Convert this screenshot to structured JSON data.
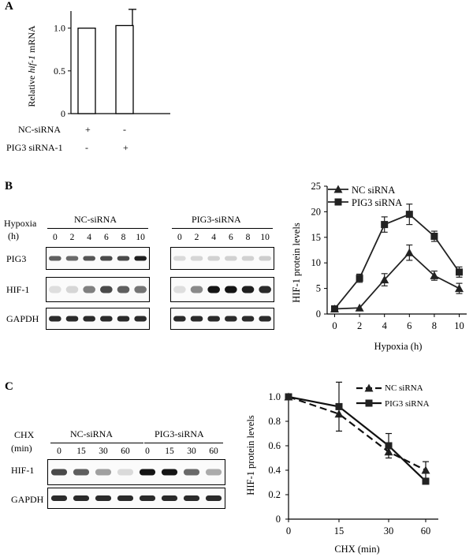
{
  "panels": {
    "a": {
      "letter": "A",
      "bar_chart": {
        "type": "bar",
        "ylabel_prefix": "Relative ",
        "ylabel_italic": "hif-1",
        "ylabel_suffix": " mRNA",
        "ylim": [
          0,
          1.2
        ],
        "yticks": [
          "0",
          "0.5",
          "1.0"
        ],
        "ytick_values": [
          0,
          0.5,
          1.0
        ],
        "values": [
          1.0,
          1.03
        ],
        "errors": [
          0,
          0.19
        ]
      },
      "condition_rows": [
        {
          "label": "NC-siRNA",
          "marks": [
            "+",
            "-"
          ]
        },
        {
          "label": "PIG3 siRNA-1",
          "marks": [
            "-",
            "+"
          ]
        }
      ]
    },
    "b": {
      "letter": "B",
      "blot": {
        "treatment_label": "Hypoxia",
        "unit_label": "(h)",
        "group_labels": [
          "NC-siRNA",
          "PIG3-siRNA"
        ],
        "lanes": [
          "0",
          "2",
          "4",
          "6",
          "8",
          "10"
        ],
        "rows": [
          {
            "name": "PIG3",
            "intensity_nc": [
              0.65,
              0.6,
              0.7,
              0.75,
              0.75,
              0.95
            ],
            "intensity_pig3": [
              0.08,
              0.1,
              0.12,
              0.12,
              0.12,
              0.14
            ]
          },
          {
            "name": "HIF-1",
            "intensity_nc": [
              0.06,
              0.1,
              0.5,
              0.75,
              0.65,
              0.55
            ],
            "intensity_pig3": [
              0.06,
              0.45,
              1.0,
              1.0,
              0.95,
              0.9
            ]
          },
          {
            "name": "GAPDH",
            "intensity_nc": [
              0.9,
              0.9,
              0.9,
              0.9,
              0.9,
              0.9
            ],
            "intensity_pig3": [
              0.9,
              0.9,
              0.9,
              0.9,
              0.9,
              0.9
            ]
          }
        ]
      }
    },
    "c": {
      "letter": "C",
      "blot": {
        "treatment_label": "CHX",
        "unit_label": "(min)",
        "group_labels": [
          "NC-siRNA",
          "PIG3-siRNA"
        ],
        "lanes": [
          "0",
          "15",
          "30",
          "60"
        ],
        "rows": [
          {
            "name": "HIF-1",
            "intensity_nc": [
              0.75,
              0.65,
              0.35,
              0.08
            ],
            "intensity_pig3": [
              1.0,
              1.0,
              0.6,
              0.3
            ]
          },
          {
            "name": "GAPDH",
            "intensity_nc": [
              0.9,
              0.9,
              0.9,
              0.9
            ],
            "intensity_pig3": [
              0.9,
              0.9,
              0.9,
              0.9
            ]
          }
        ]
      }
    }
  },
  "chart_data": [
    {
      "type": "bar",
      "categories": [
        "NC-siRNA +",
        "PIG3 siRNA-1 +"
      ],
      "values": [
        1.0,
        1.03
      ],
      "errors": [
        0,
        0.19
      ],
      "ylabel": "Relative hif-1 mRNA",
      "ylim": [
        0,
        1.2
      ]
    },
    {
      "type": "line",
      "x": [
        0,
        2,
        4,
        6,
        8,
        10
      ],
      "series": [
        {
          "name": "NC siRNA",
          "marker": "triangle",
          "style": "solid",
          "values": [
            1,
            1.2,
            6.7,
            12,
            7.5,
            5
          ],
          "errors": [
            0,
            0,
            1.2,
            1.5,
            0.9,
            1
          ]
        },
        {
          "name": "PIG3 siRNA",
          "marker": "square",
          "style": "solid",
          "values": [
            1,
            7,
            17.5,
            19.5,
            15.2,
            8.2
          ],
          "errors": [
            0,
            0.8,
            1.5,
            2,
            1,
            1
          ]
        }
      ],
      "xlabel": "Hypoxia (h)",
      "ylabel": "HIF-1 protein levels",
      "xticks": [
        "0",
        "2",
        "4",
        "6",
        "8",
        "10"
      ],
      "yticks": [
        "0",
        "5",
        "10",
        "15",
        "20",
        "25"
      ],
      "ytick_values": [
        0,
        5,
        10,
        15,
        20,
        25
      ],
      "xlim": [
        -0.6,
        10.6
      ],
      "ylim": [
        0,
        25
      ],
      "legend": "top-left"
    },
    {
      "type": "line",
      "x": [
        0,
        15,
        30,
        60
      ],
      "x_positions": [
        0,
        1,
        2,
        3
      ],
      "series": [
        {
          "name": "NC siRNA",
          "marker": "triangle",
          "style": "dashed",
          "values": [
            1.0,
            0.86,
            0.55,
            0.4
          ],
          "errors": [
            0,
            0,
            0,
            0.07
          ]
        },
        {
          "name": "PIG3 siRNA",
          "marker": "square",
          "style": "solid",
          "values": [
            1.0,
            0.92,
            0.6,
            0.31
          ],
          "errors": [
            0,
            0.2,
            0.1,
            0
          ]
        }
      ],
      "xlabel": "CHX (min)",
      "ylabel": "HIF-1 protein levels",
      "xticks": [
        "0",
        "15",
        "30",
        "60"
      ],
      "yticks": [
        "0",
        "0.2",
        "0.4",
        "0.6",
        "0.8",
        "1.0"
      ],
      "ytick_values": [
        0,
        0.2,
        0.4,
        0.6,
        0.8,
        1.0
      ],
      "ylim": [
        0,
        1.0
      ],
      "legend": "top-right"
    }
  ]
}
